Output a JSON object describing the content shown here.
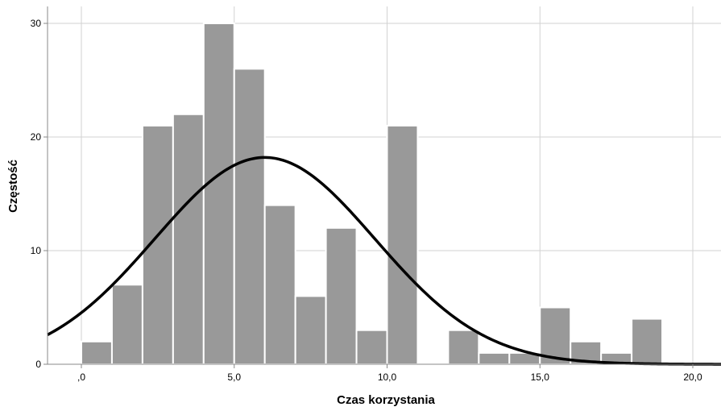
{
  "chart_data": {
    "type": "bar",
    "subtype": "histogram with normal curve",
    "xlabel": "Czas korzystania",
    "ylabel": "Częstość",
    "xlim": [
      -1.0,
      22.0
    ],
    "ylim": [
      0,
      30.5
    ],
    "x_ticks": [
      {
        "value": 0,
        "label": ",0"
      },
      {
        "value": 5,
        "label": "5,0"
      },
      {
        "value": 10,
        "label": "10,0"
      },
      {
        "value": 15,
        "label": "15,0"
      },
      {
        "value": 20,
        "label": "20,0"
      }
    ],
    "y_ticks": [
      {
        "value": 0,
        "label": "0"
      },
      {
        "value": 10,
        "label": "10"
      },
      {
        "value": 20,
        "label": "20"
      },
      {
        "value": 30,
        "label": "30"
      }
    ],
    "grid": true,
    "bin_width": 1,
    "bins": [
      {
        "start": 0,
        "count": 2
      },
      {
        "start": 1,
        "count": 7
      },
      {
        "start": 2,
        "count": 21
      },
      {
        "start": 3,
        "count": 22
      },
      {
        "start": 4,
        "count": 30
      },
      {
        "start": 5,
        "count": 26
      },
      {
        "start": 6,
        "count": 14
      },
      {
        "start": 7,
        "count": 6
      },
      {
        "start": 8,
        "count": 12
      },
      {
        "start": 9,
        "count": 3
      },
      {
        "start": 10,
        "count": 21
      },
      {
        "start": 11,
        "count": 0
      },
      {
        "start": 12,
        "count": 3
      },
      {
        "start": 13,
        "count": 1
      },
      {
        "start": 14,
        "count": 1
      },
      {
        "start": 15,
        "count": 5
      },
      {
        "start": 16,
        "count": 2
      },
      {
        "start": 17,
        "count": 1
      },
      {
        "start": 18,
        "count": 4
      }
    ],
    "normal_curve": {
      "mean": 6.0,
      "std_dev": 3.6,
      "peak": 18.2
    },
    "colors": {
      "bar_fill": "#999999",
      "bar_stroke": "#ffffff",
      "curve": "#000000",
      "grid": "#d2d2d2",
      "axis": "#888888"
    }
  }
}
